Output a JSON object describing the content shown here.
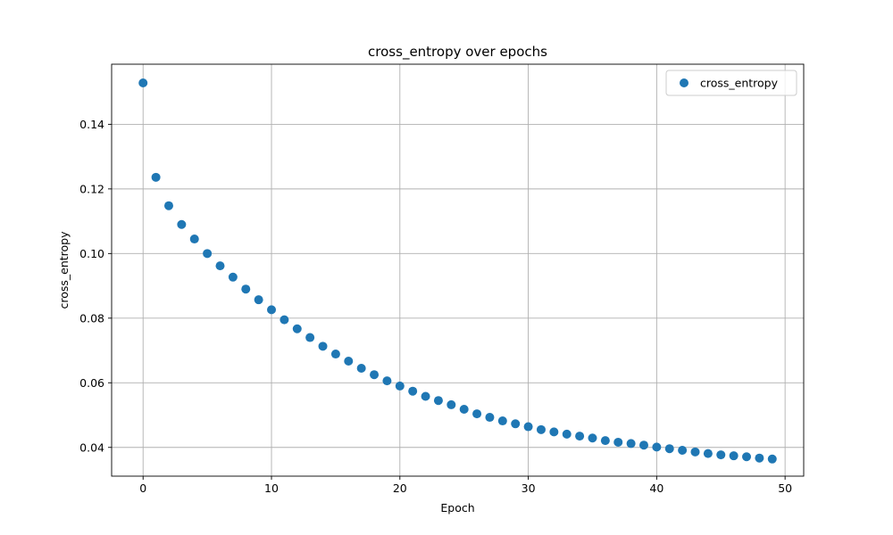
{
  "chart_data": {
    "type": "scatter",
    "title": "cross_entropy over epochs",
    "xlabel": "Epoch",
    "ylabel": "cross_entropy",
    "xlim": [
      -2.45,
      51.45
    ],
    "ylim": [
      0.0311,
      0.1586
    ],
    "xticks": [
      0,
      10,
      20,
      30,
      40,
      50
    ],
    "xtick_labels": [
      "0",
      "10",
      "20",
      "30",
      "40",
      "50"
    ],
    "yticks": [
      0.04,
      0.06,
      0.08,
      0.1,
      0.12,
      0.14
    ],
    "ytick_labels": [
      "0.04",
      "0.06",
      "0.08",
      "0.10",
      "0.12",
      "0.14"
    ],
    "grid": true,
    "legend_position": "top-right",
    "series": [
      {
        "name": "cross_entropy",
        "color": "#1f77b4",
        "x": [
          0,
          1,
          2,
          3,
          4,
          5,
          6,
          7,
          8,
          9,
          10,
          11,
          12,
          13,
          14,
          15,
          16,
          17,
          18,
          19,
          20,
          21,
          22,
          23,
          24,
          25,
          26,
          27,
          28,
          29,
          30,
          31,
          32,
          33,
          34,
          35,
          36,
          37,
          38,
          39,
          40,
          41,
          42,
          43,
          44,
          45,
          46,
          47,
          48,
          49
        ],
        "y": [
          0.1528,
          0.1236,
          0.1148,
          0.109,
          0.1045,
          0.1,
          0.0962,
          0.0927,
          0.089,
          0.0857,
          0.0826,
          0.0795,
          0.0767,
          0.074,
          0.0713,
          0.0689,
          0.0667,
          0.0645,
          0.0625,
          0.0606,
          0.059,
          0.0574,
          0.0558,
          0.0545,
          0.0532,
          0.0518,
          0.0504,
          0.0493,
          0.0482,
          0.0473,
          0.0464,
          0.0455,
          0.0448,
          0.0441,
          0.0435,
          0.0429,
          0.0421,
          0.0416,
          0.0412,
          0.0407,
          0.0401,
          0.0396,
          0.0391,
          0.0386,
          0.0381,
          0.0377,
          0.0374,
          0.0371,
          0.0367,
          0.0364
        ]
      }
    ]
  }
}
